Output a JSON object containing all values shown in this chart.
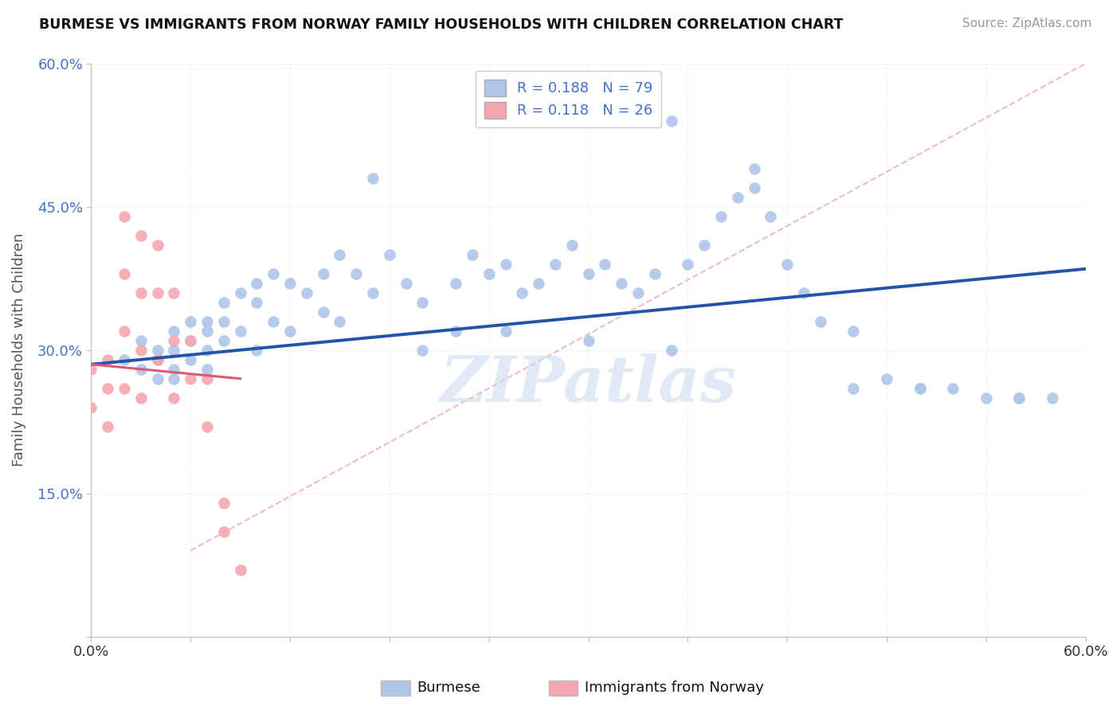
{
  "title": "BURMESE VS IMMIGRANTS FROM NORWAY FAMILY HOUSEHOLDS WITH CHILDREN CORRELATION CHART",
  "source": "Source: ZipAtlas.com",
  "ylabel": "Family Households with Children",
  "xlim": [
    0.0,
    0.6
  ],
  "ylim": [
    0.0,
    0.6
  ],
  "xtick_positions": [
    0.0,
    0.06,
    0.12,
    0.18,
    0.24,
    0.3,
    0.36,
    0.42,
    0.48,
    0.54,
    0.6
  ],
  "xtick_labels": [
    "0.0%",
    "",
    "",
    "",
    "",
    "",
    "",
    "",
    "",
    "",
    "60.0%"
  ],
  "ytick_positions": [
    0.0,
    0.15,
    0.3,
    0.45,
    0.6
  ],
  "ytick_labels": [
    "",
    "15.0%",
    "30.0%",
    "45.0%",
    "60.0%"
  ],
  "legend_burmese_R": "0.188",
  "legend_burmese_N": "79",
  "legend_norway_R": "0.118",
  "legend_norway_N": "26",
  "burmese_color": "#aec6e8",
  "norway_color": "#f4a7b0",
  "burmese_line_color": "#2255aa",
  "norway_line_color": "#e05870",
  "ref_line_color": "#f4a7b0",
  "watermark": "ZIPatlas",
  "burmese_seed": 42,
  "norway_seed": 7,
  "background": "#ffffff",
  "grid_color": "#e8e8e8",
  "burmese_x": [
    0.02,
    0.03,
    0.03,
    0.04,
    0.04,
    0.04,
    0.05,
    0.05,
    0.05,
    0.05,
    0.06,
    0.06,
    0.06,
    0.07,
    0.07,
    0.07,
    0.07,
    0.08,
    0.08,
    0.08,
    0.09,
    0.09,
    0.1,
    0.1,
    0.1,
    0.11,
    0.11,
    0.12,
    0.12,
    0.13,
    0.14,
    0.14,
    0.15,
    0.15,
    0.16,
    0.17,
    0.18,
    0.19,
    0.2,
    0.22,
    0.23,
    0.24,
    0.25,
    0.26,
    0.27,
    0.28,
    0.29,
    0.3,
    0.31,
    0.32,
    0.33,
    0.34,
    0.35,
    0.36,
    0.37,
    0.38,
    0.39,
    0.4,
    0.41,
    0.42,
    0.43,
    0.44,
    0.46,
    0.48,
    0.5,
    0.52,
    0.54,
    0.56,
    0.58,
    0.17,
    0.2,
    0.22,
    0.25,
    0.3,
    0.35,
    0.4,
    0.46,
    0.5,
    0.56
  ],
  "burmese_y": [
    0.29,
    0.31,
    0.28,
    0.3,
    0.29,
    0.27,
    0.32,
    0.3,
    0.28,
    0.27,
    0.33,
    0.31,
    0.29,
    0.33,
    0.32,
    0.3,
    0.28,
    0.35,
    0.33,
    0.31,
    0.36,
    0.32,
    0.37,
    0.35,
    0.3,
    0.38,
    0.33,
    0.37,
    0.32,
    0.36,
    0.38,
    0.34,
    0.4,
    0.33,
    0.38,
    0.36,
    0.4,
    0.37,
    0.35,
    0.37,
    0.4,
    0.38,
    0.39,
    0.36,
    0.37,
    0.39,
    0.41,
    0.38,
    0.39,
    0.37,
    0.36,
    0.38,
    0.54,
    0.39,
    0.41,
    0.44,
    0.46,
    0.47,
    0.44,
    0.39,
    0.36,
    0.33,
    0.32,
    0.27,
    0.26,
    0.26,
    0.25,
    0.25,
    0.25,
    0.48,
    0.3,
    0.32,
    0.32,
    0.31,
    0.3,
    0.49,
    0.26,
    0.26,
    0.25
  ],
  "norway_x": [
    0.0,
    0.0,
    0.01,
    0.01,
    0.01,
    0.02,
    0.02,
    0.02,
    0.02,
    0.03,
    0.03,
    0.03,
    0.03,
    0.04,
    0.04,
    0.04,
    0.05,
    0.05,
    0.05,
    0.06,
    0.06,
    0.07,
    0.07,
    0.08,
    0.08,
    0.09
  ],
  "norway_y": [
    0.28,
    0.24,
    0.29,
    0.26,
    0.22,
    0.44,
    0.38,
    0.32,
    0.26,
    0.42,
    0.36,
    0.3,
    0.25,
    0.41,
    0.36,
    0.29,
    0.36,
    0.31,
    0.25,
    0.31,
    0.27,
    0.27,
    0.22,
    0.14,
    0.11,
    0.07
  ],
  "burmese_line_x": [
    0.0,
    0.6
  ],
  "burmese_line_y": [
    0.285,
    0.385
  ],
  "norway_line_x": [
    0.0,
    0.09
  ],
  "norway_line_y": [
    0.285,
    0.27
  ],
  "ref_line_x": [
    0.06,
    0.6
  ],
  "ref_line_y": [
    0.09,
    0.6
  ]
}
